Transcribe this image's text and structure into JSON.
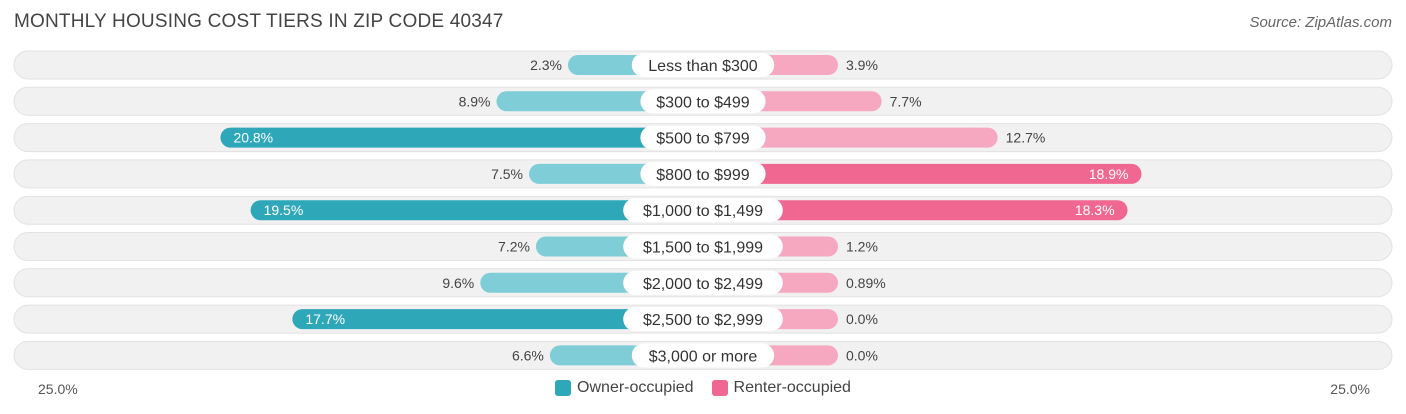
{
  "title": "MONTHLY HOUSING COST TIERS IN ZIP CODE 40347",
  "source": "Source: ZipAtlas.com",
  "colors": {
    "owner": "#2ea7b8",
    "owner_light": "#7fcdd6",
    "renter": "#f06891",
    "renter_light": "#f7a8c1",
    "row_bg": "#f1f1f1"
  },
  "chart_data": {
    "type": "bar",
    "orientation": "diverging-horizontal",
    "title": "MONTHLY HOUSING COST TIERS IN ZIP CODE 40347",
    "categories": [
      "Less than $300",
      "$300 to $499",
      "$500 to $799",
      "$800 to $999",
      "$1,000 to $1,499",
      "$1,500 to $1,999",
      "$2,000 to $2,499",
      "$2,500 to $2,999",
      "$3,000 or more"
    ],
    "series": [
      {
        "name": "Owner-occupied",
        "values": [
          2.3,
          8.9,
          20.8,
          7.5,
          19.5,
          7.2,
          9.6,
          17.7,
          6.6
        ],
        "labels": [
          "2.3%",
          "8.9%",
          "20.8%",
          "7.5%",
          "19.5%",
          "7.2%",
          "9.6%",
          "17.7%",
          "6.6%"
        ]
      },
      {
        "name": "Renter-occupied",
        "values": [
          3.9,
          7.7,
          12.7,
          18.9,
          18.3,
          1.2,
          0.89,
          0.0,
          0.0
        ],
        "labels": [
          "3.9%",
          "7.7%",
          "12.7%",
          "18.9%",
          "18.3%",
          "1.2%",
          "0.89%",
          "0.0%",
          "0.0%"
        ]
      }
    ],
    "axis_max": 25.0,
    "axis_left_label": "25.0%",
    "axis_right_label": "25.0%",
    "legend": [
      "Owner-occupied",
      "Renter-occupied"
    ]
  }
}
